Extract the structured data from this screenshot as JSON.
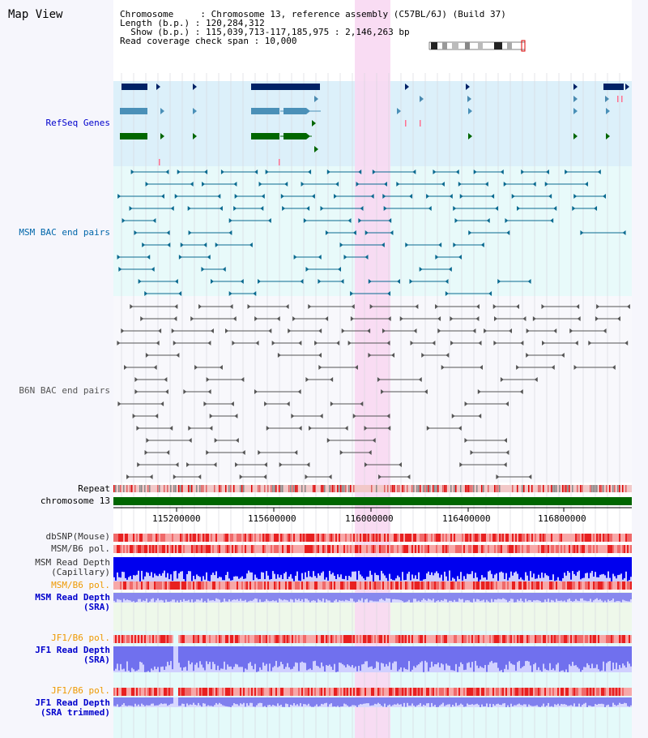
{
  "title": "Map View",
  "header": {
    "line1": "Chromosome     : Chromosome 13, reference assembly (C57BL/6J) (Build 37)",
    "line2": "Length (b.p.) : 120,284,312",
    "line3": "  Show (b.p.) : 115,039,713-117,185,975 : 2,146,263 bp",
    "line4": "Read coverage check span : 10,000"
  },
  "tracks": {
    "refseq": "RefSeq Genes",
    "msm_bac": "MSM BAC end pairs",
    "b6n_bac": "B6N BAC end pairs",
    "repeat": "Repeat",
    "chromosome": "chromosome 13",
    "dbsnp": "dbSNP(Mouse)",
    "msm_b6_pol_1": "MSM/B6 pol.",
    "msm_depth_cap": "MSM Read Depth\n(Capillary)",
    "msm_b6_pol_2": "MSM/B6 pol.",
    "msm_depth_sra": "MSM Read Depth\n(SRA)",
    "jf1_b6_pol_1": "JF1/B6 pol.",
    "jf1_depth_sra": "JF1 Read Depth\n(SRA)",
    "jf1_b6_pol_2": "JF1/B6 pol.",
    "jf1_depth_trim": "JF1 Read Depth\n(SRA trimmed)"
  },
  "axis": {
    "ticks": [
      "115200000",
      "115600000",
      "116000000",
      "116400000",
      "116800000"
    ]
  },
  "colors": {
    "refseq_label": "#0000cc",
    "msm_label": "#0066aa",
    "b6n_label": "#555555",
    "orange_label": "#ee9900",
    "highlight": "#f8d8f2",
    "chromosome": "#006600"
  }
}
